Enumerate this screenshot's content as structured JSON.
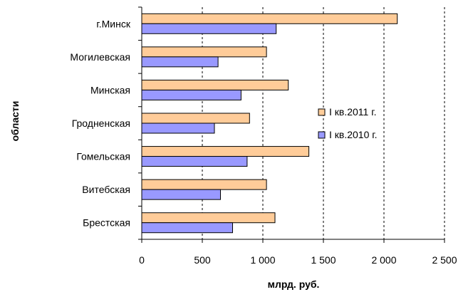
{
  "chart_data": {
    "type": "bar",
    "orientation": "horizontal",
    "categories": [
      "г.Минск",
      "Могилевская",
      "Минская",
      "Гродненская",
      "Гомельская",
      "Витебская",
      "Брестская"
    ],
    "series": [
      {
        "name": "I кв.2011 г.",
        "color": "#FFCC99",
        "values": [
          2110,
          1030,
          1210,
          890,
          1380,
          1030,
          1100
        ]
      },
      {
        "name": "I кв.2010 г.",
        "color": "#9999FF",
        "values": [
          1110,
          630,
          820,
          600,
          870,
          650,
          750
        ]
      }
    ],
    "xlabel": "млрд. руб.",
    "ylabel": "области",
    "xlim": [
      0,
      2500
    ],
    "xticks": [
      0,
      500,
      1000,
      1500,
      2000,
      2500
    ],
    "xtick_labels": [
      "0",
      "500",
      "1 000",
      "1 500",
      "2 000",
      "2 500"
    ],
    "grid": "vertical dashed",
    "legend_position": "right"
  }
}
